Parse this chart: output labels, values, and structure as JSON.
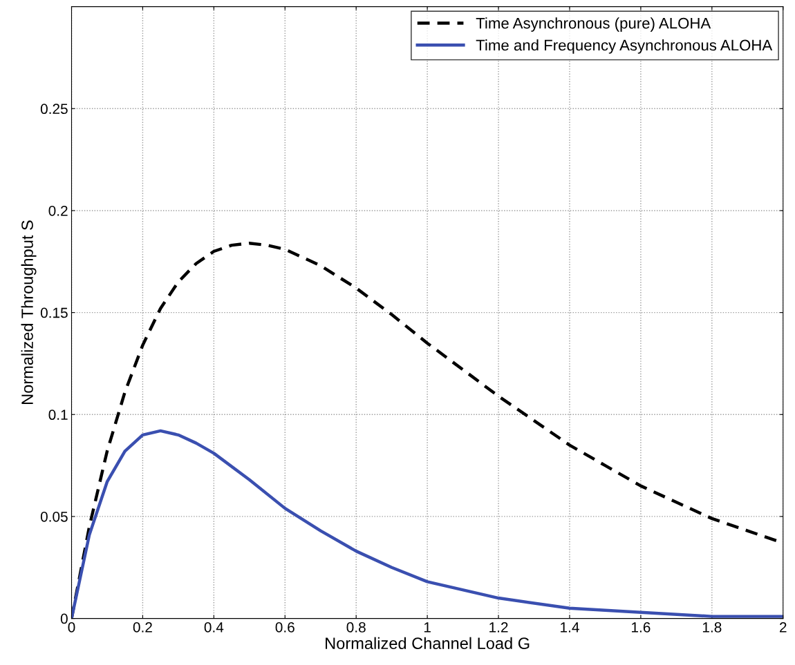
{
  "chart_data": {
    "type": "line",
    "xlabel": "Normalized Channel Load G",
    "ylabel": "Normalized Throughput S",
    "xlim": [
      0,
      2
    ],
    "ylim": [
      0,
      0.3
    ],
    "xticks": [
      0,
      0.2,
      0.4,
      0.6,
      0.8,
      1,
      1.2,
      1.4,
      1.6,
      1.8,
      2
    ],
    "yticks": [
      0,
      0.05,
      0.1,
      0.15,
      0.2,
      0.25
    ],
    "grid": true,
    "legend": "top right",
    "marker": "none",
    "series": [
      {
        "name": "Time Asynchronous (pure) ALOHA",
        "color": "#000000",
        "line_style": "dashed",
        "x": [
          0,
          0.05,
          0.1,
          0.15,
          0.2,
          0.25,
          0.3,
          0.35,
          0.4,
          0.45,
          0.5,
          0.55,
          0.6,
          0.7,
          0.8,
          0.9,
          1.0,
          1.1,
          1.2,
          1.3,
          1.4,
          1.5,
          1.6,
          1.7,
          1.8,
          1.9,
          2.0
        ],
        "values": [
          0,
          0.045,
          0.082,
          0.111,
          0.134,
          0.152,
          0.165,
          0.174,
          0.18,
          0.183,
          0.184,
          0.183,
          0.181,
          0.173,
          0.162,
          0.149,
          0.135,
          0.122,
          0.109,
          0.097,
          0.085,
          0.075,
          0.065,
          0.057,
          0.049,
          0.043,
          0.037
        ]
      },
      {
        "name": "Time and Frequency Asynchronous ALOHA",
        "color": "#3a4fb0",
        "line_style": "solid",
        "x": [
          0,
          0.05,
          0.1,
          0.15,
          0.2,
          0.25,
          0.3,
          0.35,
          0.4,
          0.5,
          0.6,
          0.7,
          0.8,
          0.9,
          1.0,
          1.2,
          1.4,
          1.6,
          1.8,
          2.0
        ],
        "values": [
          0,
          0.041,
          0.067,
          0.082,
          0.09,
          0.092,
          0.09,
          0.086,
          0.081,
          0.068,
          0.054,
          0.043,
          0.033,
          0.025,
          0.018,
          0.01,
          0.005,
          0.003,
          0.001,
          0.001
        ]
      }
    ]
  }
}
